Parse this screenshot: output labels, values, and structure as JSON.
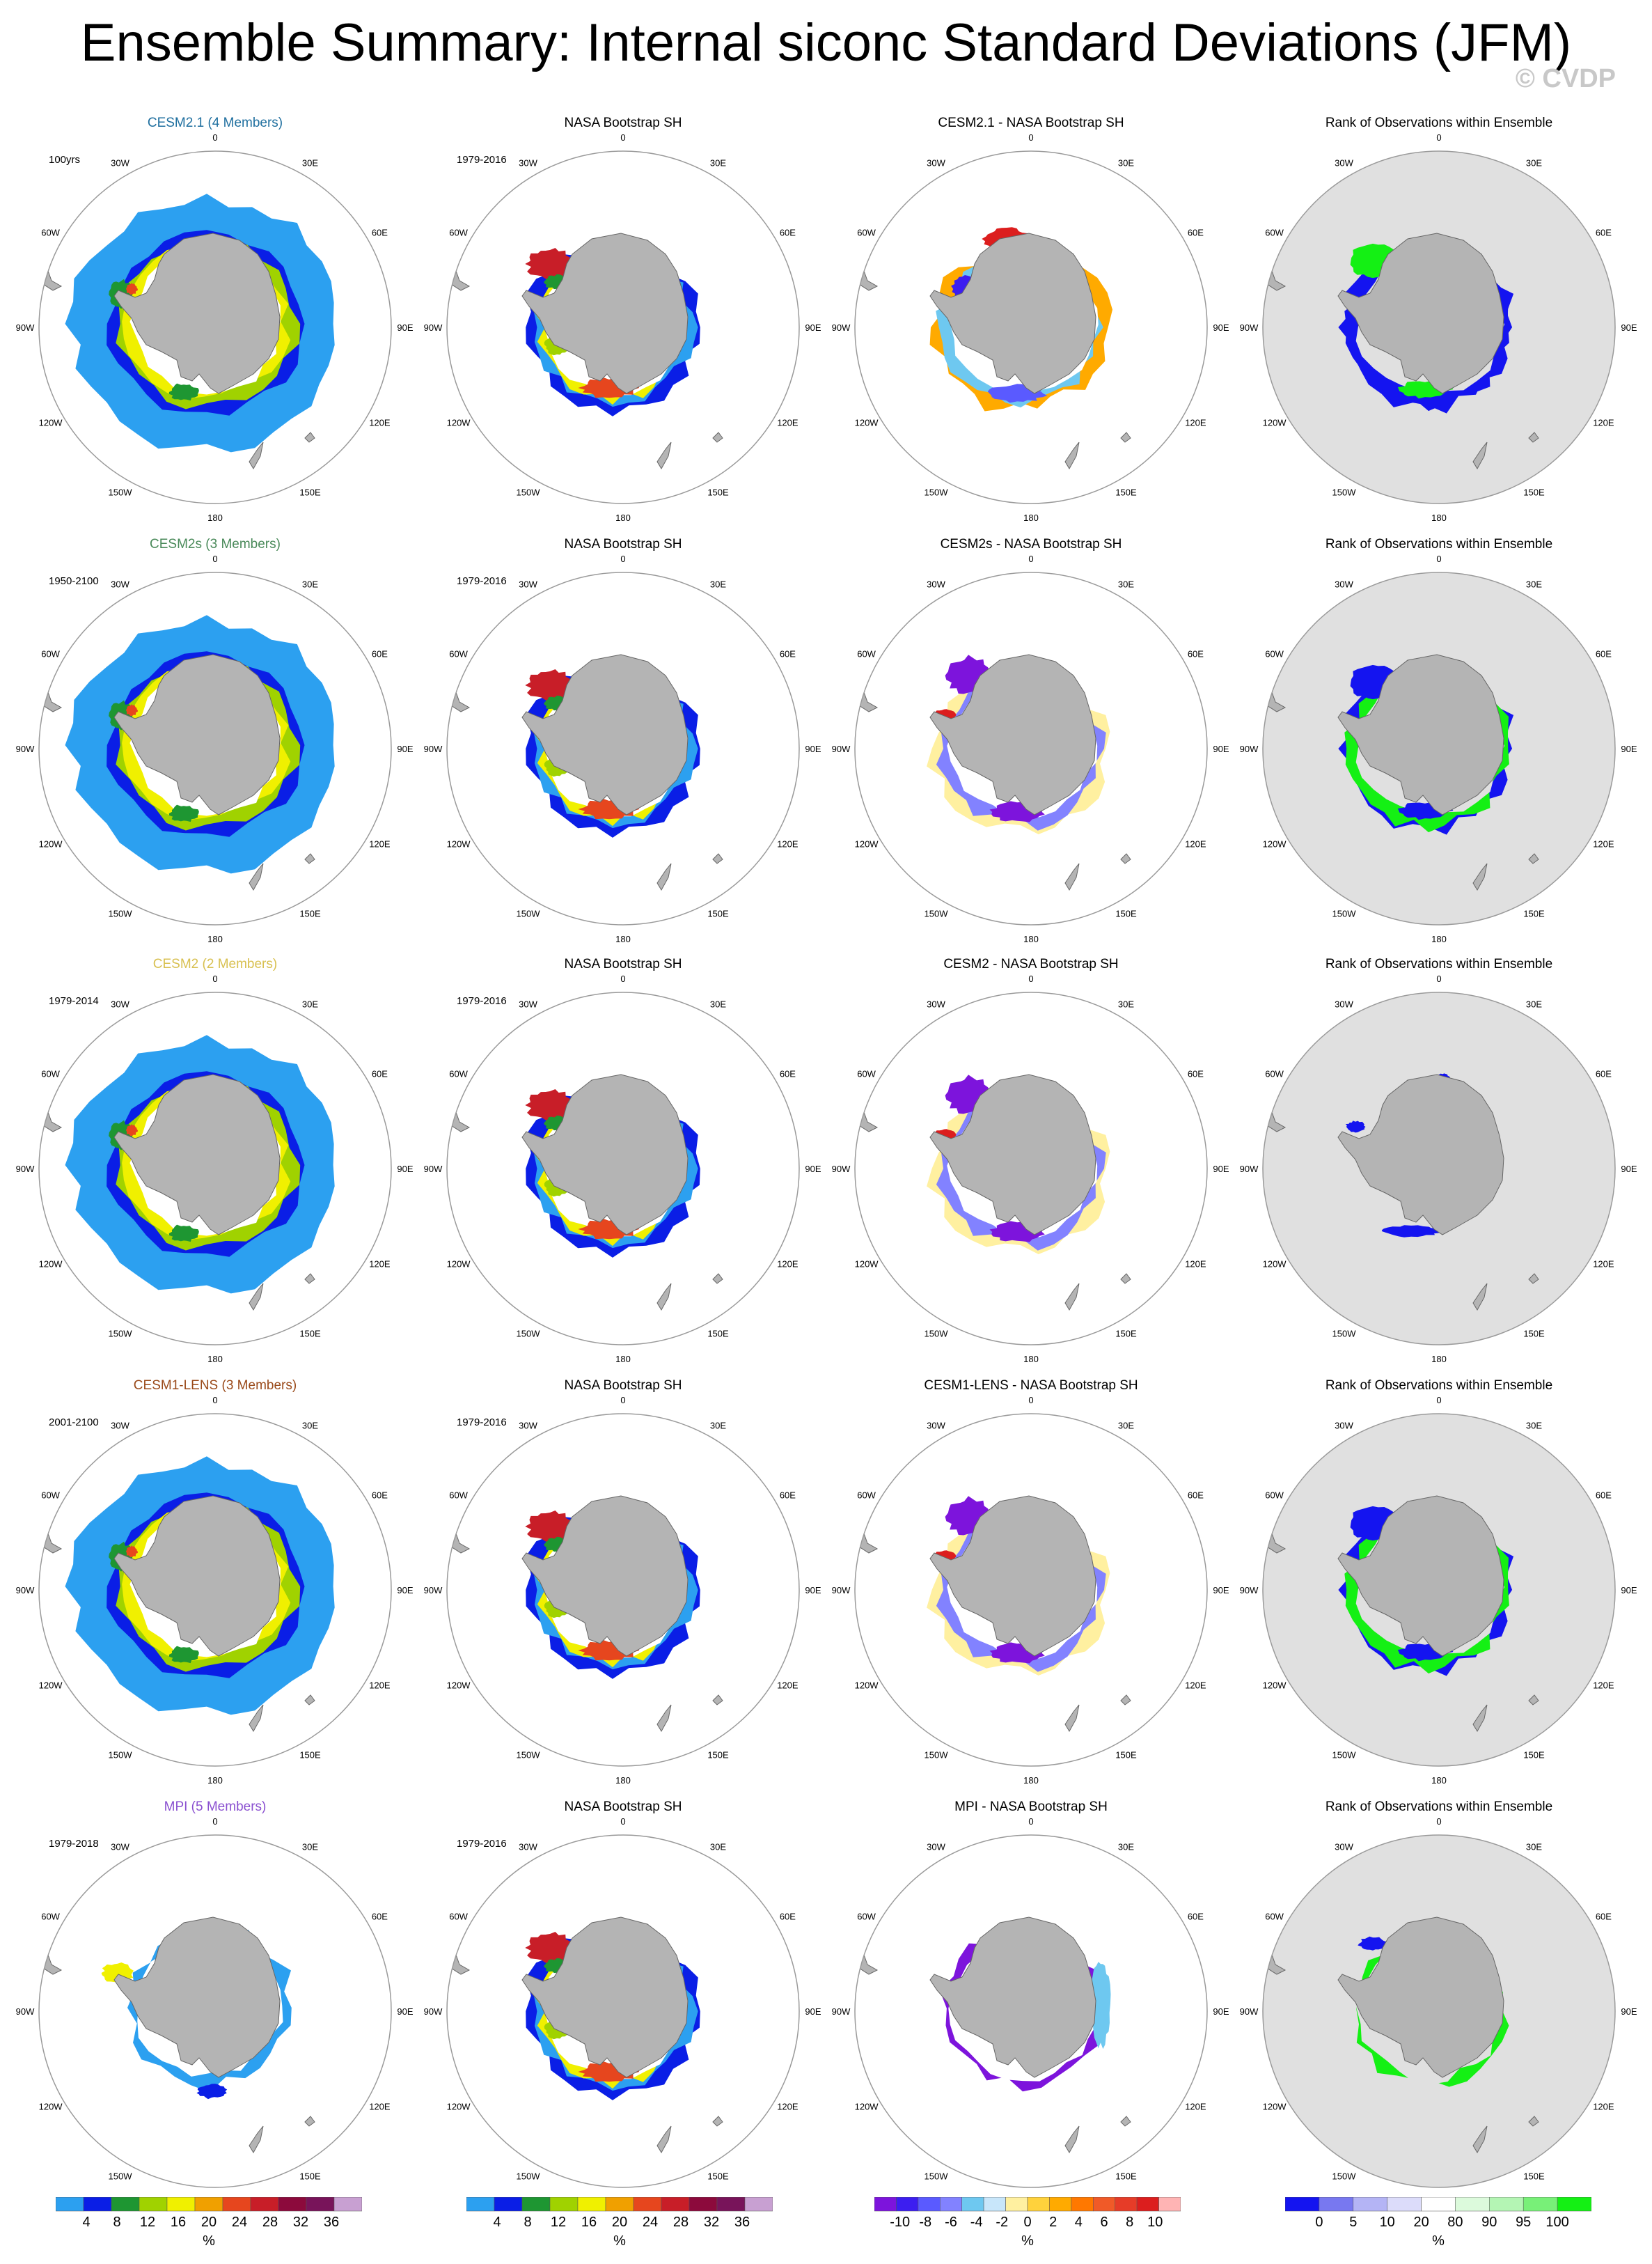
{
  "title": "Ensemble Summary: Internal siconc Standard Deviations (JFM)",
  "watermark": "© CVDP",
  "lon_labels": [
    "0",
    "30E",
    "60E",
    "90E",
    "120E",
    "150E",
    "180",
    "150W",
    "120W",
    "90W",
    "60W",
    "30W"
  ],
  "colors": {
    "land": "#b4b4b4",
    "rank_background": "#e0e0e0",
    "circle": "#9a9a9a"
  },
  "rows": [
    {
      "model": "CESM2.1 (4 Members)",
      "model_color": "#1f6f9f",
      "period": "100yrs",
      "obs": "NASA Bootstrap SH",
      "obs_period": "1979-2016",
      "diff": "CESM2.1 - NASA Bootstrap SH",
      "rank": "Rank of Observations within Ensemble",
      "model_style": "full",
      "diff_style": "mixed-warm",
      "rank_style": "mixed"
    },
    {
      "model": "CESM2s (3 Members)",
      "model_color": "#4a8a5a",
      "period": "1950-2100",
      "obs": "NASA Bootstrap SH",
      "obs_period": "1979-2016",
      "diff": "CESM2s - NASA Bootstrap SH",
      "rank": "Rank of Observations within Ensemble",
      "model_style": "full",
      "diff_style": "cool",
      "rank_style": "green"
    },
    {
      "model": "CESM2 (2 Members)",
      "model_color": "#d8c050",
      "period": "1979-2014",
      "obs": "NASA Bootstrap SH",
      "obs_period": "1979-2016",
      "diff": "CESM2 - NASA Bootstrap SH",
      "rank": "Rank of Observations within Ensemble",
      "model_style": "full",
      "diff_style": "cool",
      "rank_style": "sparse"
    },
    {
      "model": "CESM1-LENS (3 Members)",
      "model_color": "#9a4a1a",
      "period": "2001-2100",
      "obs": "NASA Bootstrap SH",
      "obs_period": "1979-2016",
      "diff": "CESM1-LENS - NASA Bootstrap SH",
      "rank": "Rank of Observations within Ensemble",
      "model_style": "full",
      "diff_style": "cool",
      "rank_style": "green"
    },
    {
      "model": "MPI (5 Members)",
      "model_color": "#8a50d0",
      "period": "1979-2018",
      "obs": "NASA Bootstrap SH",
      "obs_period": "1979-2016",
      "diff": "MPI - NASA Bootstrap SH",
      "rank": "Rank of Observations within Ensemble",
      "model_style": "thin",
      "diff_style": "purple",
      "rank_style": "green-thin"
    }
  ],
  "colorbars": [
    {
      "units": "%",
      "labels": [
        "4",
        "8",
        "12",
        "16",
        "20",
        "24",
        "28",
        "32",
        "36"
      ],
      "colors": [
        "#2ca0f0",
        "#0a1ee6",
        "#1e9632",
        "#a0d200",
        "#f0f000",
        "#f0a000",
        "#e6461e",
        "#c81e28",
        "#8c0a3c",
        "#78145a",
        "#c8a0d2"
      ]
    },
    {
      "units": "%",
      "labels": [
        "4",
        "8",
        "12",
        "16",
        "20",
        "24",
        "28",
        "32",
        "36"
      ],
      "colors": [
        "#2ca0f0",
        "#0a1ee6",
        "#1e9632",
        "#a0d200",
        "#f0f000",
        "#f0a000",
        "#e6461e",
        "#c81e28",
        "#8c0a3c",
        "#78145a",
        "#c8a0d2"
      ]
    },
    {
      "units": "%",
      "labels": [
        "-10",
        "-8",
        "-6",
        "-4",
        "-2",
        "0",
        "2",
        "4",
        "6",
        "8",
        "10"
      ],
      "colors": [
        "#7d14dc",
        "#3c1ef0",
        "#5a5aff",
        "#8282ff",
        "#6ec8f0",
        "#c8e6fa",
        "#fff0a0",
        "#ffd23c",
        "#ffaa00",
        "#ff7800",
        "#f05a28",
        "#e63c28",
        "#dc1e1e",
        "#ffb4b4"
      ]
    },
    {
      "units": "%",
      "labels": [
        "0",
        "5",
        "10",
        "20",
        "80",
        "90",
        "95",
        "100"
      ],
      "colors": [
        "#1414f0",
        "#7878f0",
        "#b4b4f5",
        "#dcdcfa",
        "#ffffff",
        "#dcfadc",
        "#b4f5b4",
        "#78f078",
        "#14f014"
      ]
    }
  ]
}
